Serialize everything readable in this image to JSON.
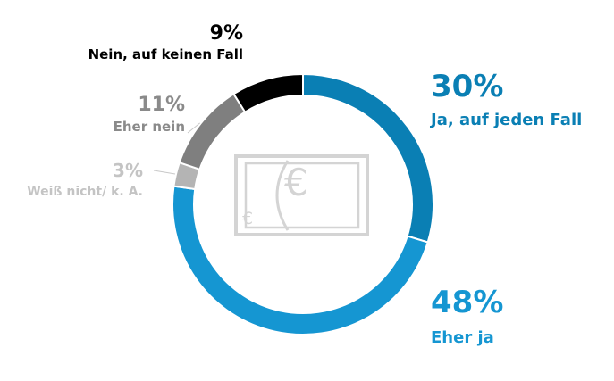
{
  "chart_data": {
    "type": "pie",
    "variant": "donut",
    "categories": [
      "Ja, auf jeden Fall",
      "Eher ja",
      "Weiß nicht/ k. A.",
      "Eher nein",
      "Nein, auf keinen Fall"
    ],
    "values": [
      30,
      48,
      3,
      11,
      9
    ],
    "value_labels": [
      "30%",
      "48%",
      "3%",
      "11%",
      "9%"
    ],
    "colors": [
      "#0a7fb4",
      "#1596d2",
      "#b4b4b4",
      "#7f7f7f",
      "#000000"
    ],
    "label_colors": [
      "#0a7fb4",
      "#1596d2",
      "#c4c4c4",
      "#8a8a8a",
      "#000000"
    ],
    "start_angle_deg": 0,
    "direction": "clockwise",
    "center_icon": "euro-banknote-icon"
  }
}
